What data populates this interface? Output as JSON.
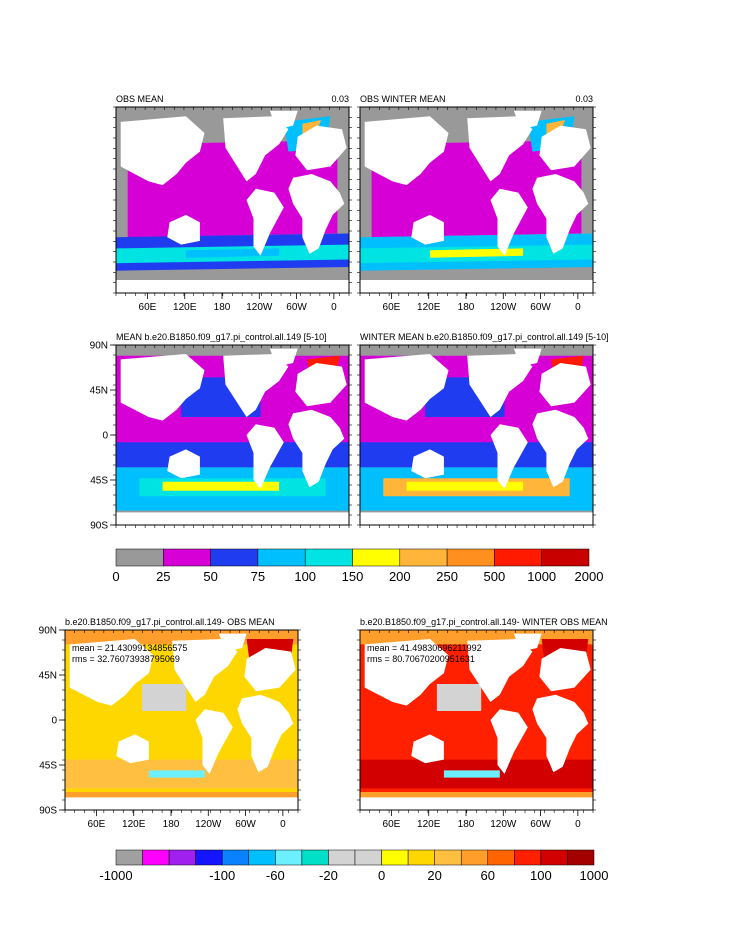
{
  "figure": {
    "panels": [
      {
        "id": "obs-mean",
        "title_left": "OBS MEAN",
        "title_right": "0.03",
        "kind": "obs",
        "winter": false
      },
      {
        "id": "obs-winter-mean",
        "title_left": "OBS WINTER MEAN",
        "title_right": "0.03",
        "kind": "obs",
        "winter": true
      },
      {
        "id": "model-mean",
        "title_left": "MEAN b.e20.B1850.f09_g17.pi_control.all.149 [5-10]",
        "title_right": "",
        "kind": "model",
        "winter": false
      },
      {
        "id": "model-winter-mean",
        "title_left": "WINTER MEAN b.e20.B1850.f09_g17.pi_control.all.149 [5-10]",
        "title_right": "",
        "kind": "model",
        "winter": true
      },
      {
        "id": "diff-mean",
        "title_left": "b.e20.B1850.f09_g17.pi_control.all.149- OBS MEAN",
        "title_right": "",
        "kind": "diff",
        "winter": false,
        "stats": [
          "mean = 21.43099134856575",
          "rms = 32.76073938795069"
        ]
      },
      {
        "id": "diff-winter-mean",
        "title_left": "b.e20.B1850.f09_g17.pi_control.all.149- WINTER OBS MEAN",
        "title_right": "",
        "kind": "diff",
        "winter": true,
        "stats": [
          "mean = 41.49830696211992",
          "rms = 80.70670200951631"
        ]
      }
    ],
    "lon_labels": [
      "60E",
      "120E",
      "180",
      "120W",
      "60W",
      "0"
    ],
    "lat_labels": [
      "90N",
      "45N",
      "0",
      "45S",
      "90S"
    ],
    "colorbar_top": {
      "colors": [
        "#999999",
        "#d600d6",
        "#1f3cf0",
        "#00bfff",
        "#00e3e3",
        "#ffff00",
        "#ffb43a",
        "#ff8f1e",
        "#ff1a00",
        "#c80000"
      ],
      "labels": [
        "0",
        "25",
        "50",
        "75",
        "100",
        "150",
        "200",
        "250",
        "500",
        "1000",
        "2000"
      ]
    },
    "colorbar_bottom": {
      "colors": [
        "#a0a0a0",
        "#ff00ff",
        "#a020f0",
        "#1414ff",
        "#0a82ff",
        "#00bfff",
        "#6cf0ff",
        "#00e0c8",
        "#d3d3d3",
        "#d3d3d3",
        "#ffff00",
        "#ffd700",
        "#ffbf40",
        "#ff9e2b",
        "#ff6400",
        "#ff2000",
        "#d20000",
        "#a50000"
      ],
      "labels": [
        "-1000",
        "-100",
        "-60",
        "-20",
        "0",
        "20",
        "60",
        "100",
        "1000"
      ]
    }
  },
  "chart_data": [
    {
      "type": "heatmap",
      "title": "OBS MEAN",
      "subtitle": "0.03",
      "x_ticks": [
        "60E",
        "120E",
        "180",
        "120W",
        "60W",
        "0"
      ],
      "y_ticks": [],
      "color_levels": [
        0,
        25,
        50,
        75,
        100,
        150,
        200,
        250,
        500,
        1000,
        2000
      ]
    },
    {
      "type": "heatmap",
      "title": "OBS WINTER MEAN",
      "subtitle": "0.03",
      "x_ticks": [
        "60E",
        "120E",
        "180",
        "120W",
        "60W",
        "0"
      ],
      "y_ticks": [],
      "color_levels": [
        0,
        25,
        50,
        75,
        100,
        150,
        200,
        250,
        500,
        1000,
        2000
      ]
    },
    {
      "type": "heatmap",
      "title": "MEAN b.e20.B1850.f09_g17.pi_control.all.149 [5-10]",
      "y_ticks": [
        "90N",
        "45N",
        "0",
        "45S",
        "90S"
      ],
      "color_levels": [
        0,
        25,
        50,
        75,
        100,
        150,
        200,
        250,
        500,
        1000,
        2000
      ]
    },
    {
      "type": "heatmap",
      "title": "WINTER MEAN b.e20.B1850.f09_g17.pi_control.all.149 [5-10]",
      "color_levels": [
        0,
        25,
        50,
        75,
        100,
        150,
        200,
        250,
        500,
        1000,
        2000
      ]
    },
    {
      "type": "heatmap",
      "title": "b.e20.B1850.f09_g17.pi_control.all.149- OBS MEAN",
      "x_ticks": [
        "60E",
        "120E",
        "180",
        "120W",
        "60W",
        "0"
      ],
      "y_ticks": [
        "90N",
        "45N",
        "0",
        "45S",
        "90S"
      ],
      "mean": 21.43099134856575,
      "rms": 32.76073938795069,
      "color_levels": [
        -1000,
        -100,
        -60,
        -20,
        0,
        20,
        60,
        100,
        1000
      ]
    },
    {
      "type": "heatmap",
      "title": "b.e20.B1850.f09_g17.pi_control.all.149- WINTER OBS MEAN",
      "x_ticks": [
        "60E",
        "120E",
        "180",
        "120W",
        "60W",
        "0"
      ],
      "mean": 41.49830696211992,
      "rms": 80.7067020095163,
      "color_levels": [
        -1000,
        -100,
        -60,
        -20,
        0,
        20,
        60,
        100,
        1000
      ]
    }
  ]
}
